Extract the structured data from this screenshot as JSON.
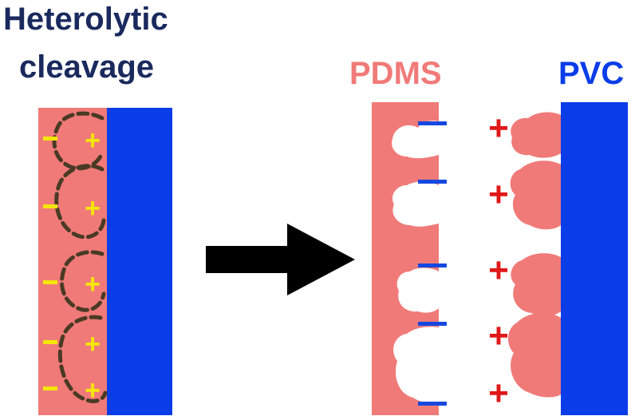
{
  "title": {
    "line1": "Heterolytic",
    "line2": "cleavage"
  },
  "labels": {
    "pdms": "PDMS",
    "pvc": "PVC"
  },
  "symbols": {
    "negative": "−",
    "positive": "+"
  },
  "colors": {
    "title": "#1a2a5e",
    "pdms": "#f07a78",
    "pvc": "#0a3de8",
    "fragment": "#f07a78",
    "minus_after": "#1648e0",
    "plus_after": "#e01818",
    "charge_before": "#f5e60a",
    "bond_dash": "#4a3a25",
    "arrow": "#000000"
  }
}
